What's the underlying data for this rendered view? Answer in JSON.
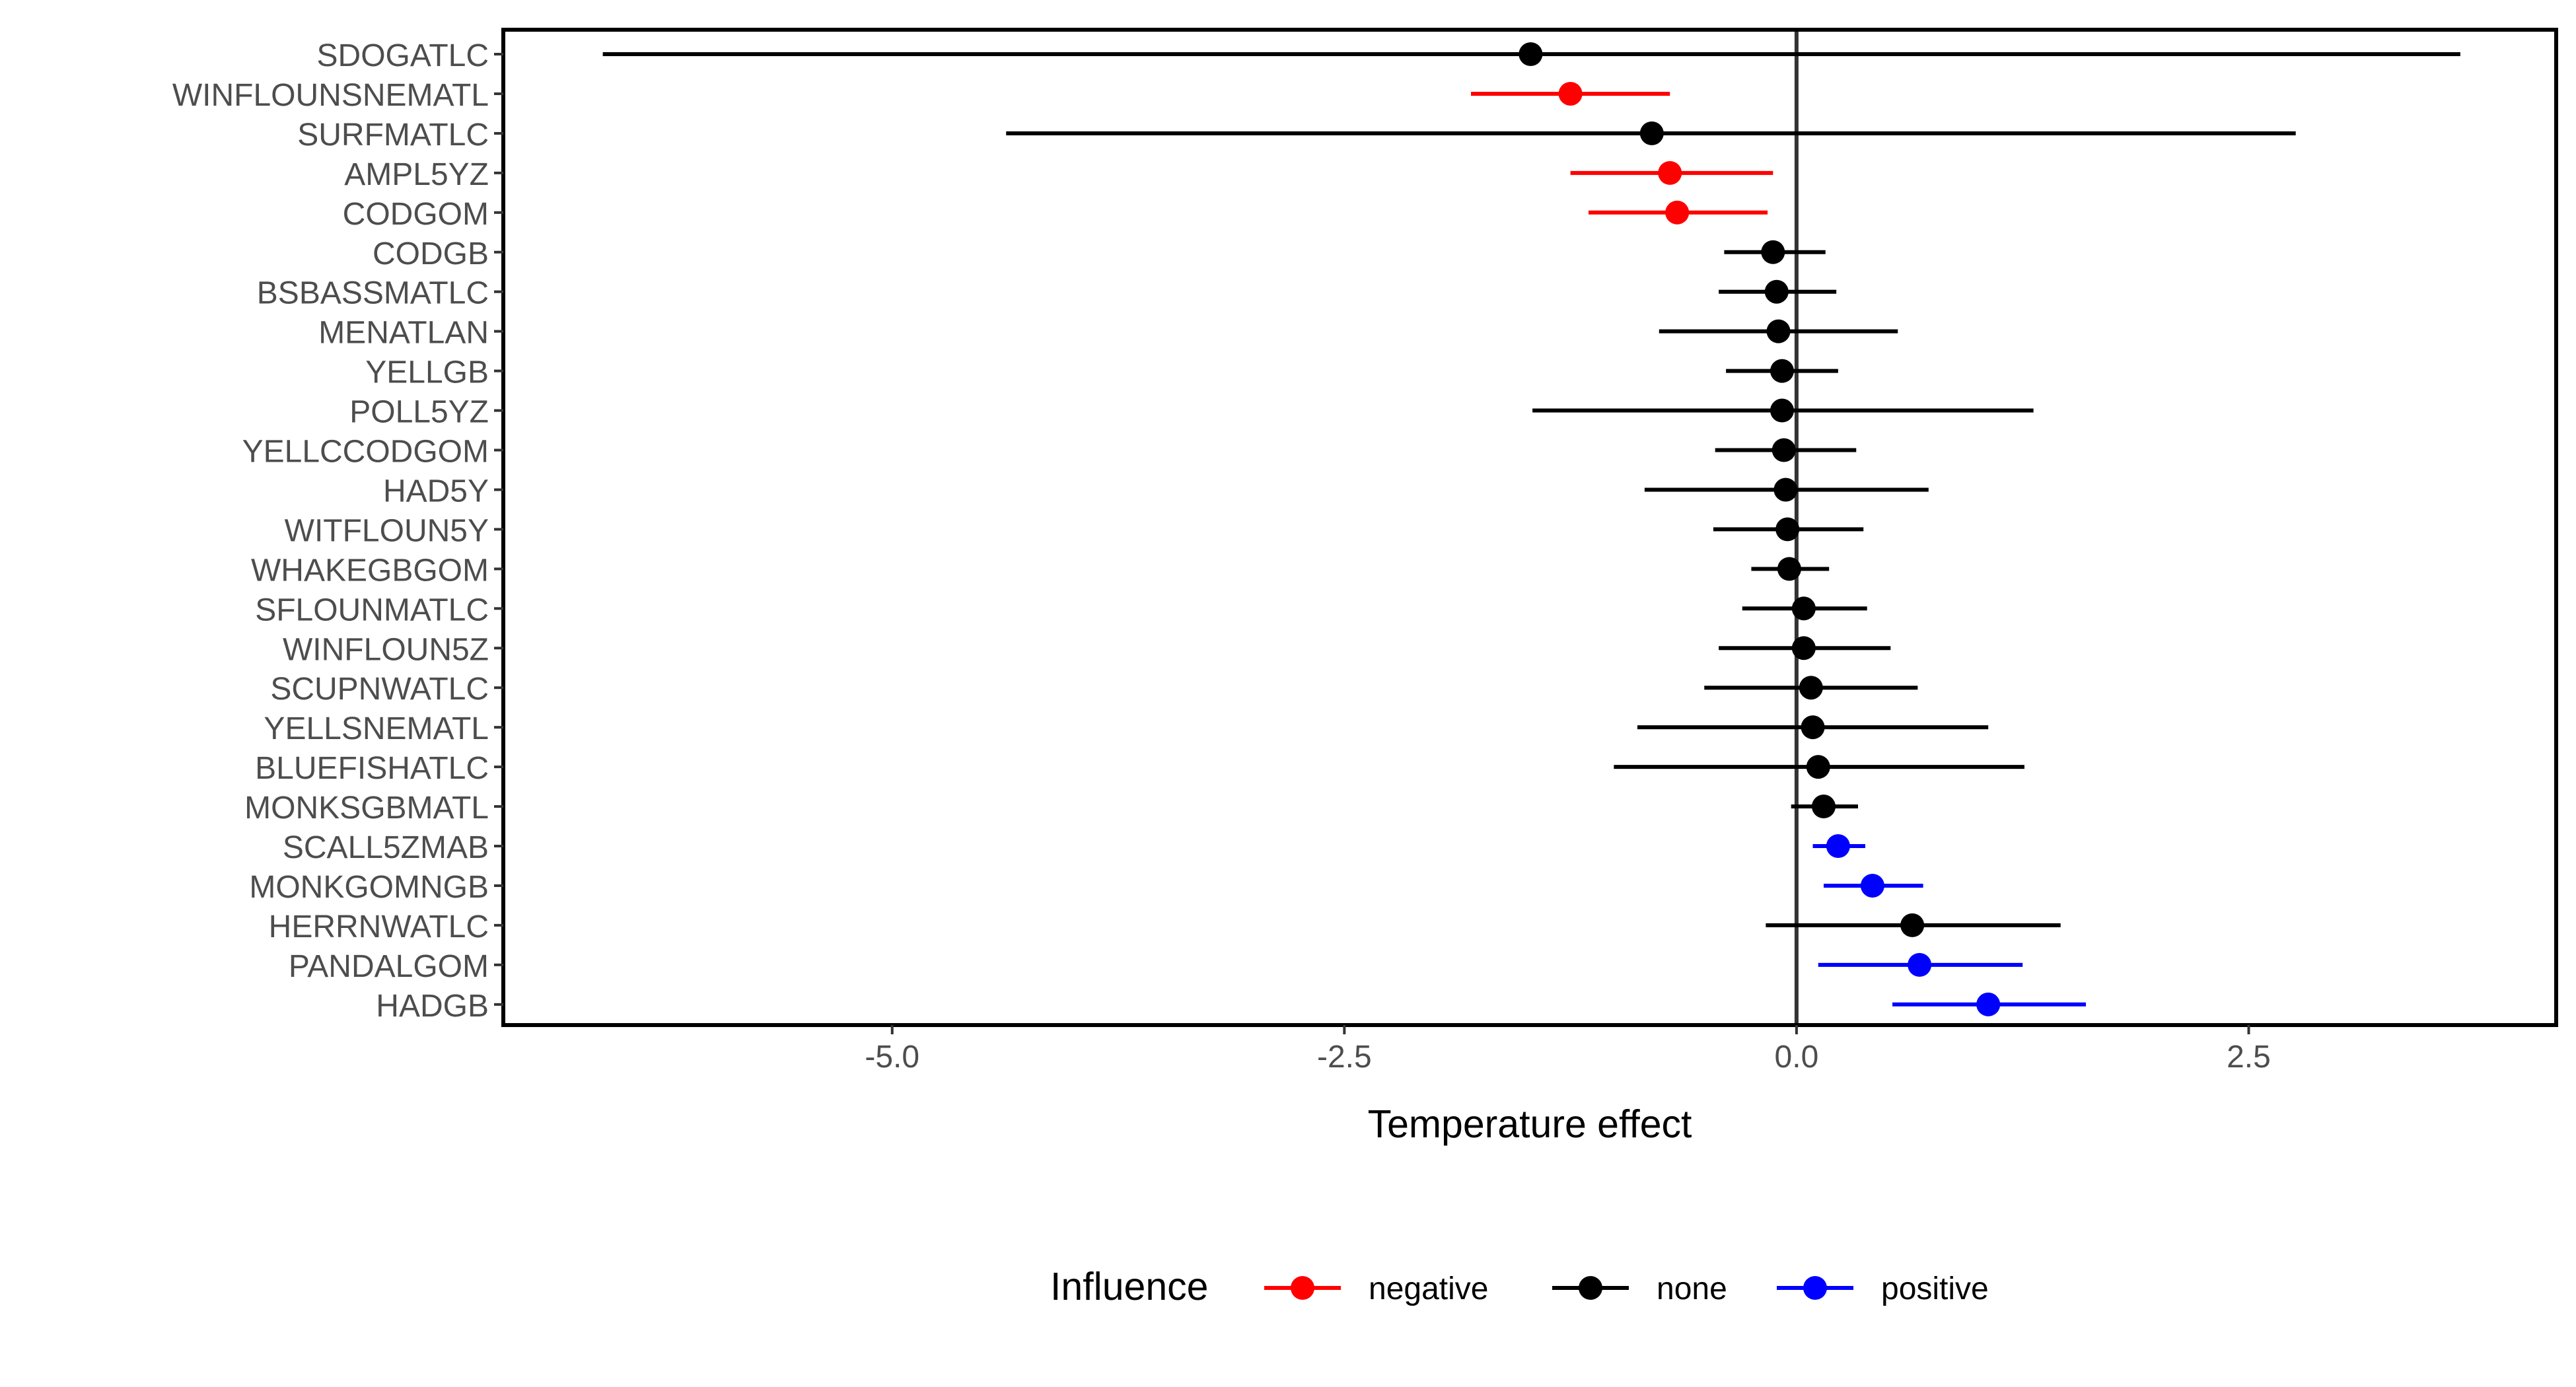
{
  "chart_data": {
    "type": "scatter",
    "subtype": "point-range (forest plot)",
    "title": "",
    "xlabel": "Temperature effect",
    "ylabel": "",
    "xlim": [
      -7.15,
      4.2
    ],
    "x_ticks": [
      -5.0,
      -2.5,
      0.0,
      2.5
    ],
    "x_tick_labels": [
      "-5.0",
      "-2.5",
      "0.0",
      "2.5"
    ],
    "reference_line_x": 0,
    "grid": false,
    "legend": {
      "title": "Influence",
      "position": "bottom",
      "entries": [
        {
          "key": "negative",
          "label": "negative",
          "color": "#ff0000"
        },
        {
          "key": "none",
          "label": "none",
          "color": "#000000"
        },
        {
          "key": "positive",
          "label": "positive",
          "color": "#0000ff"
        }
      ]
    },
    "points": [
      {
        "stock": "SDOGATLC",
        "estimate": -1.47,
        "lower": -6.6,
        "upper": 3.67,
        "influence": "none"
      },
      {
        "stock": "WINFLOUNSNEMATL",
        "estimate": -1.25,
        "lower": -1.8,
        "upper": -0.7,
        "influence": "negative"
      },
      {
        "stock": "SURFMATLC",
        "estimate": -0.8,
        "lower": -4.37,
        "upper": 2.76,
        "influence": "none"
      },
      {
        "stock": "AMPL5YZ",
        "estimate": -0.7,
        "lower": -1.25,
        "upper": -0.13,
        "influence": "negative"
      },
      {
        "stock": "CODGOM",
        "estimate": -0.66,
        "lower": -1.15,
        "upper": -0.16,
        "influence": "negative"
      },
      {
        "stock": "CODGB",
        "estimate": -0.13,
        "lower": -0.4,
        "upper": 0.16,
        "influence": "none"
      },
      {
        "stock": "BSBASSMATLC",
        "estimate": -0.11,
        "lower": -0.43,
        "upper": 0.22,
        "influence": "none"
      },
      {
        "stock": "MENATLAN",
        "estimate": -0.1,
        "lower": -0.76,
        "upper": 0.56,
        "influence": "none"
      },
      {
        "stock": "YELLGB",
        "estimate": -0.08,
        "lower": -0.39,
        "upper": 0.23,
        "influence": "none"
      },
      {
        "stock": "POLL5YZ",
        "estimate": -0.08,
        "lower": -1.46,
        "upper": 1.31,
        "influence": "none"
      },
      {
        "stock": "YELLCCODGOM",
        "estimate": -0.07,
        "lower": -0.45,
        "upper": 0.33,
        "influence": "none"
      },
      {
        "stock": "HAD5Y",
        "estimate": -0.06,
        "lower": -0.84,
        "upper": 0.73,
        "influence": "none"
      },
      {
        "stock": "WITFLOUN5Y",
        "estimate": -0.05,
        "lower": -0.46,
        "upper": 0.37,
        "influence": "none"
      },
      {
        "stock": "WHAKEGBGOM",
        "estimate": -0.04,
        "lower": -0.25,
        "upper": 0.18,
        "influence": "none"
      },
      {
        "stock": "SFLOUNMATLC",
        "estimate": 0.04,
        "lower": -0.3,
        "upper": 0.39,
        "influence": "none"
      },
      {
        "stock": "WINFLOUN5Z",
        "estimate": 0.04,
        "lower": -0.43,
        "upper": 0.52,
        "influence": "none"
      },
      {
        "stock": "SCUPNWATLC",
        "estimate": 0.08,
        "lower": -0.51,
        "upper": 0.67,
        "influence": "none"
      },
      {
        "stock": "YELLSNEMATL",
        "estimate": 0.09,
        "lower": -0.88,
        "upper": 1.06,
        "influence": "none"
      },
      {
        "stock": "BLUEFISHATLC",
        "estimate": 0.12,
        "lower": -1.01,
        "upper": 1.26,
        "influence": "none"
      },
      {
        "stock": "MONKSGBMATL",
        "estimate": 0.15,
        "lower": -0.03,
        "upper": 0.34,
        "influence": "none"
      },
      {
        "stock": "SCALL5ZMAB",
        "estimate": 0.23,
        "lower": 0.09,
        "upper": 0.38,
        "influence": "positive"
      },
      {
        "stock": "MONKGOMNGB",
        "estimate": 0.42,
        "lower": 0.15,
        "upper": 0.7,
        "influence": "positive"
      },
      {
        "stock": "HERRNWATLC",
        "estimate": 0.64,
        "lower": -0.17,
        "upper": 1.46,
        "influence": "none"
      },
      {
        "stock": "PANDALGOM",
        "estimate": 0.68,
        "lower": 0.12,
        "upper": 1.25,
        "influence": "positive"
      },
      {
        "stock": "HADGB",
        "estimate": 1.06,
        "lower": 0.53,
        "upper": 1.6,
        "influence": "positive"
      }
    ]
  }
}
